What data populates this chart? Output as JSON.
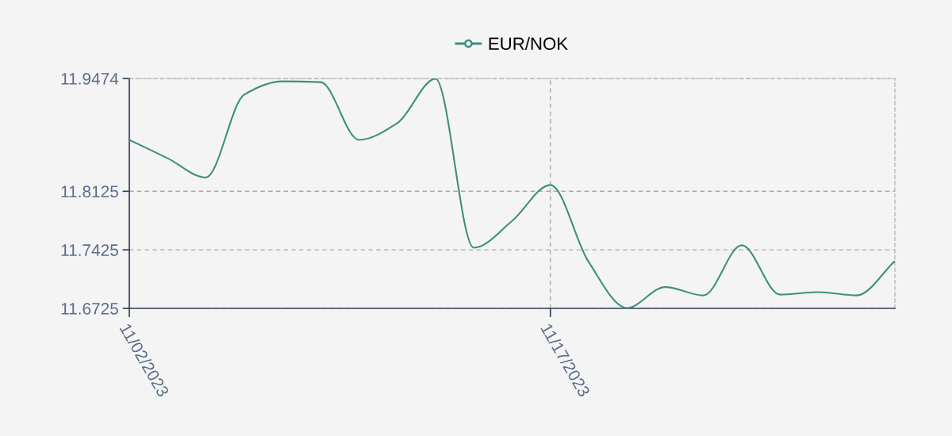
{
  "chart_data": {
    "type": "line",
    "categories": [
      "11/02/2023",
      null,
      null,
      null,
      null,
      null,
      null,
      null,
      null,
      null,
      null,
      "11/17/2023",
      null,
      null,
      null,
      null,
      null,
      null,
      null,
      null,
      null
    ],
    "series": [
      {
        "name": "EUR/NOK",
        "color": "#3d8f80",
        "values": [
          11.874,
          11.852,
          11.829,
          11.928,
          11.944,
          11.943,
          11.874,
          11.894,
          11.947,
          11.745,
          11.777,
          11.82,
          11.728,
          11.673,
          11.698,
          11.688,
          11.748,
          11.689,
          11.692,
          11.688,
          11.729
        ]
      }
    ],
    "ylim": [
      11.6725,
      11.9474
    ],
    "yticks": [
      11.6725,
      11.7425,
      11.8125,
      11.9474
    ],
    "grid": true,
    "legend": "top",
    "line_style": "solid"
  }
}
